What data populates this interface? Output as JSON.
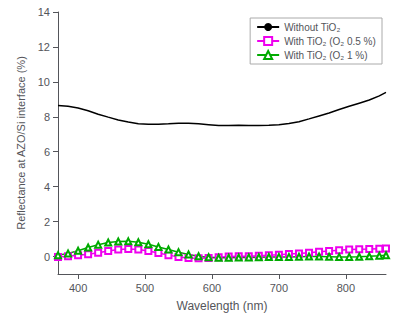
{
  "chart_data": {
    "type": "line",
    "xlabel": "Wavelength (nm)",
    "ylabel": "Reflectance at AZO/Si interface (%)",
    "xlim": [
      370,
      860
    ],
    "ylim": [
      -1,
      14
    ],
    "xticks": [
      400,
      500,
      600,
      700,
      800
    ],
    "yticks": [
      0,
      2,
      4,
      6,
      8,
      10,
      12,
      14
    ],
    "grid": false,
    "legend": "upper right",
    "x": [
      370,
      385,
      400,
      415,
      430,
      445,
      460,
      475,
      490,
      505,
      520,
      535,
      550,
      565,
      580,
      595,
      610,
      625,
      640,
      655,
      670,
      685,
      700,
      715,
      730,
      745,
      760,
      775,
      790,
      805,
      820,
      835,
      850,
      860
    ],
    "series": [
      {
        "name": "Without TiO₂",
        "color": "black",
        "marker": "none",
        "values": [
          8.65,
          8.6,
          8.5,
          8.35,
          8.15,
          7.98,
          7.82,
          7.7,
          7.6,
          7.58,
          7.58,
          7.6,
          7.63,
          7.63,
          7.6,
          7.55,
          7.5,
          7.5,
          7.52,
          7.5,
          7.5,
          7.52,
          7.55,
          7.62,
          7.72,
          7.88,
          8.05,
          8.22,
          8.42,
          8.6,
          8.78,
          8.96,
          9.2,
          9.4
        ]
      },
      {
        "name": "With TiO₂ (O₂ 0.5 %)",
        "color": "#ee00ee",
        "marker": "square",
        "values": [
          -0.02,
          0.02,
          0.07,
          0.13,
          0.22,
          0.32,
          0.4,
          0.43,
          0.4,
          0.32,
          0.2,
          0.08,
          -0.02,
          -0.08,
          -0.1,
          -0.08,
          -0.04,
          0.0,
          0.02,
          0.02,
          0.04,
          0.07,
          0.1,
          0.14,
          0.18,
          0.22,
          0.27,
          0.32,
          0.36,
          0.4,
          0.42,
          0.43,
          0.45,
          0.46
        ]
      },
      {
        "name": "With TiO₂ (O₂ 1 %)",
        "color": "#00aa00",
        "marker": "triangle",
        "values": [
          0.08,
          0.18,
          0.33,
          0.52,
          0.68,
          0.8,
          0.86,
          0.87,
          0.82,
          0.7,
          0.55,
          0.4,
          0.25,
          0.12,
          0.02,
          -0.04,
          -0.07,
          -0.07,
          -0.06,
          -0.05,
          -0.04,
          -0.03,
          -0.02,
          -0.02,
          -0.01,
          0.0,
          0.0,
          -0.01,
          -0.02,
          -0.02,
          -0.01,
          0.01,
          0.04,
          0.07
        ]
      }
    ]
  }
}
